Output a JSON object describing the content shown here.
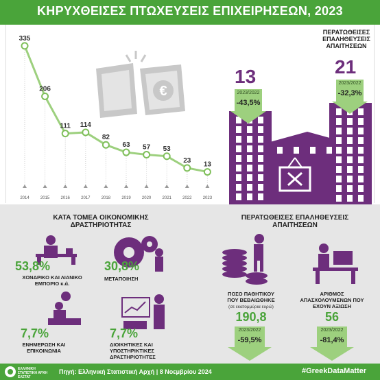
{
  "title": "ΚΗΡΥΧΘΕΙΣΕΣ ΠΤΩΧΕΥΣΕΙΣ ΕΠΙΧΕΙΡΗΣΕΩΝ, 2023",
  "chart_data": {
    "type": "line",
    "categories": [
      "2014",
      "2015",
      "2016",
      "2017",
      "2018",
      "2019",
      "2020",
      "2021",
      "2022",
      "2023"
    ],
    "values": [
      335,
      206,
      111,
      114,
      82,
      63,
      57,
      53,
      23,
      13
    ],
    "ylim": [
      0,
      340
    ]
  },
  "completed": {
    "title": "ΠΕΡΑΤΩΘΕΙΣΕΣ ΕΠΑΛΗΘΕΥΣΕΙΣ ΑΠΑΙΤΗΣΕΩΝ",
    "left_value": "13",
    "left_period": "2023/2022",
    "left_change": "-43,5%",
    "right_value": "21",
    "right_period": "2023/2022",
    "right_change": "-32,3%"
  },
  "sector": {
    "title": "ΚΑΤΑ ΤΟΜΕΑ ΟΙΚΟΝΟΜΙΚΗΣ ΔΡΑΣΤΗΡΙΟΤΗΤΑΣ",
    "items": [
      {
        "pct": "53,8%",
        "label": "ΧΟΝΔΡΙΚΟ ΚΑΙ ΛΙΑΝΙΚΟ ΕΜΠΟΡΙΟ κ.ά."
      },
      {
        "pct": "30,8%",
        "label": "ΜΕΤΑΠΟΙΗΣΗ"
      },
      {
        "pct": "7,7%",
        "label": "ΕΝΗΜΕΡΩΣΗ ΚΑΙ ΕΠΙΚΟΙΝΩΝΙΑ"
      },
      {
        "pct": "7,7%",
        "label": "ΔΙΟΙΚΗΤΙΚΕΣ ΚΑΙ ΥΠΟΣΤΗΡΙΚΤΙΚΕΣ ΔΡΑΣΤΗΡΙΟΤΗΤΕΣ"
      }
    ]
  },
  "verif": {
    "title": "ΠΕΡΑΤΩΘΕΙΣΕΣ ΕΠΑΛΗΘΕΥΣΕΙΣ ΑΠΑΙΤΗΣΕΩΝ",
    "amount_label": "ΠΟΣΟ ΠΑΘΗΤΙΚΟΥ ΠΟΥ ΒΕΒΑΙΩΘΗΚΕ",
    "amount_unit": "(σε εκατομμύρια ευρώ)",
    "amount_value": "190,8",
    "amount_period": "2023/2022",
    "amount_change": "-59,5%",
    "employees_label": "ΑΡΙΘΜΟΣ ΑΠΑΣΧΟΛΟΥΜΕΝΩΝ ΠΟΥ ΕΧΟΥΝ ΑΞΙΩΣΗ",
    "employees_value": "56",
    "employees_period": "2023/2022",
    "employees_change": "-81,4%"
  },
  "footer": {
    "logo": "ΕΛΛΗΝΙΚΗ ΣΤΑΤΙΣΤΙΚΗ ΑΡΧΗ ΕΛΣΤΑΤ",
    "source": "Πηγή: Ελληνική Στατιστική Αρχή | 8 Νοεμβρίου 2024",
    "hashtag": "#GreekDataMatter"
  },
  "colors": {
    "green": "#4aa43a",
    "light_green": "#9dd07e",
    "purple": "#6d2e7c"
  }
}
